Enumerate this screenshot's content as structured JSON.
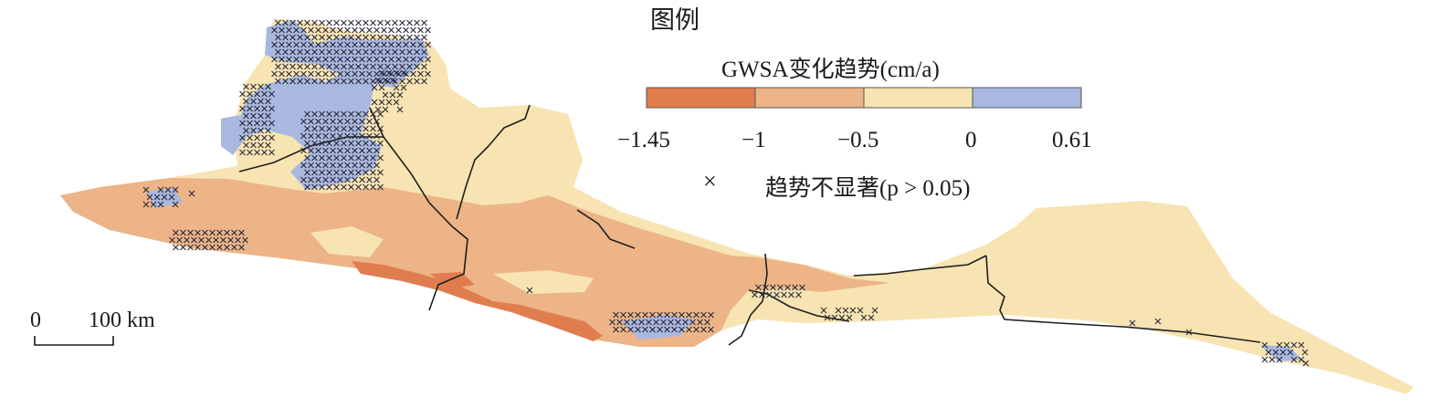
{
  "legend": {
    "title": "图例",
    "subtitle": "GWSA变化趋势(cm/a)",
    "classes": [
      {
        "from": -1.45,
        "to": -1,
        "color": "#e07d4e"
      },
      {
        "from": -1,
        "to": -0.5,
        "color": "#ecb487"
      },
      {
        "from": -0.5,
        "to": 0,
        "color": "#f7e4b2"
      },
      {
        "from": 0,
        "to": 0.61,
        "color": "#a9b8df"
      }
    ],
    "ticks": [
      "−1.45",
      "−1",
      "−0.5",
      "0",
      "0.61"
    ],
    "nonsig_symbol": "×",
    "nonsig_label": "趋势不显著(p > 0.05)"
  },
  "scale_bar": {
    "zero": "0",
    "label": "100 km"
  },
  "colors": {
    "decline_strong": "#e07d4e",
    "decline_moderate": "#ecb487",
    "decline_weak": "#f7e4b2",
    "increase": "#a9b8df",
    "boundary": "#1e1e1e",
    "hatch": "#2a2a3a"
  }
}
